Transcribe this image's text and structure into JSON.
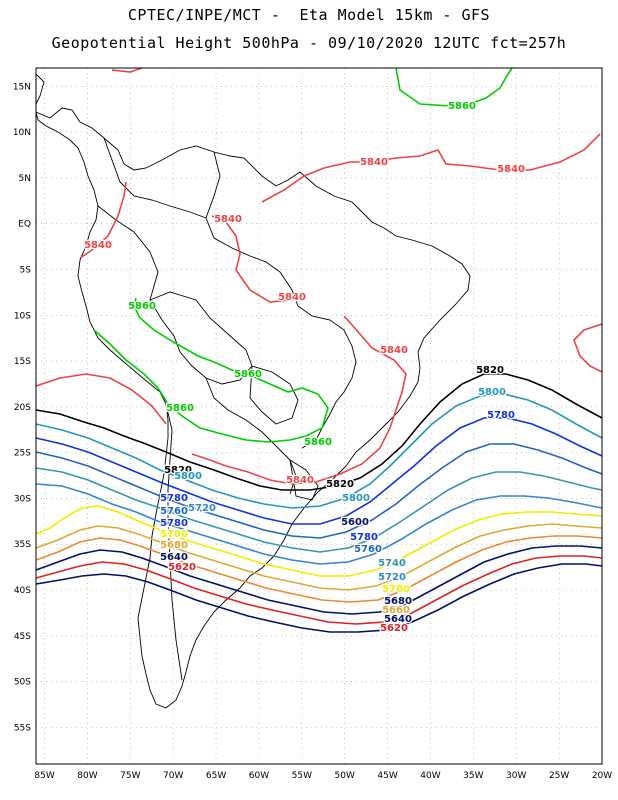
{
  "header": {
    "title_line1": "CPTEC/INPE/MCT -  Eta Model 15km - GFS",
    "title_line2": "Geopotential Height 500hPa - 09/10/2020 12UTC fct=257h"
  },
  "axes": {
    "lon_labels": [
      "85W",
      "80W",
      "75W",
      "70W",
      "65W",
      "60W",
      "55W",
      "50W",
      "45W",
      "40W",
      "35W",
      "30W",
      "25W",
      "20W"
    ],
    "lat_labels": [
      "15N",
      "10N",
      "5N",
      "EQ",
      "5S",
      "10S",
      "15S",
      "20S",
      "25S",
      "30S",
      "35S",
      "40S",
      "45S",
      "50S",
      "55S"
    ],
    "lon_range": [
      -86,
      -20
    ],
    "lat_range": [
      17,
      -59
    ],
    "grid": "dotted"
  },
  "colors": {
    "5860": "#00cc00",
    "5840": "#ee4444",
    "5820": "#000000",
    "5800": "#2299bb",
    "5780": "#1133dd",
    "5760": "#2266bb",
    "5740": "#3399aa",
    "5720": "#3388cc",
    "5700": "#eeee00",
    "5680": "#ddaa33",
    "5660": "#ee8833",
    "5620": "#dd2222",
    "5600": "#001166"
  },
  "contour_labels": [
    {
      "text": "5860",
      "color_key": "5860"
    },
    {
      "text": "5840",
      "color_key": "5840"
    },
    {
      "text": "5840",
      "color_key": "5840"
    },
    {
      "text": "5840",
      "color_key": "5840"
    },
    {
      "text": "5840",
      "color_key": "5840"
    },
    {
      "text": "5860",
      "color_key": "5860"
    },
    {
      "text": "5840",
      "color_key": "5840"
    },
    {
      "text": "5840",
      "color_key": "5840"
    },
    {
      "text": "5860",
      "color_key": "5860"
    },
    {
      "text": "5860",
      "color_key": "5860"
    },
    {
      "text": "5860",
      "color_key": "5860"
    },
    {
      "text": "5820",
      "color_key": "5820"
    },
    {
      "text": "5800",
      "color_key": "5800"
    },
    {
      "text": "5780",
      "color_key": "5780"
    },
    {
      "text": "5820",
      "color_key": "5820"
    },
    {
      "text": "5800",
      "color_key": "5800"
    },
    {
      "text": "5840",
      "color_key": "5840"
    },
    {
      "text": "5820",
      "color_key": "5820"
    },
    {
      "text": "5800",
      "color_key": "5800"
    },
    {
      "text": "5780",
      "color_key": "5780"
    },
    {
      "text": "5760",
      "color_key": "5760"
    },
    {
      "text": "5720",
      "color_key": "5720"
    },
    {
      "text": "5780",
      "color_key": "5780"
    },
    {
      "text": "5700",
      "color_key": "5700"
    },
    {
      "text": "5680",
      "color_key": "5680"
    },
    {
      "text": "5640",
      "color_key": "5600"
    },
    {
      "text": "5620",
      "color_key": "5620"
    },
    {
      "text": "5600",
      "color_key": "5600"
    },
    {
      "text": "5780",
      "color_key": "5780"
    },
    {
      "text": "5760",
      "color_key": "5760"
    },
    {
      "text": "5740",
      "color_key": "5740"
    },
    {
      "text": "5720",
      "color_key": "5720"
    },
    {
      "text": "5700",
      "color_key": "5700"
    },
    {
      "text": "5680",
      "color_key": "5600"
    },
    {
      "text": "5660",
      "color_key": "5680"
    },
    {
      "text": "5640",
      "color_key": "5600"
    },
    {
      "text": "5620",
      "color_key": "5620"
    },
    {
      "text": "5600",
      "color_key": "5600"
    }
  ]
}
